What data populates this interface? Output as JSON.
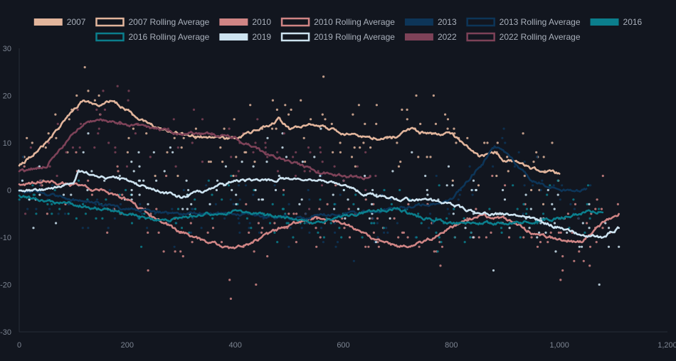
{
  "chart_data": {
    "type": "scatter",
    "title": "",
    "xlabel": "",
    "ylabel": "",
    "xlim": [
      0,
      1200
    ],
    "ylim": [
      -30,
      30
    ],
    "x_ticks": [
      0,
      200,
      400,
      600,
      800,
      1000,
      1200
    ],
    "x_tick_labels": [
      "0",
      "200",
      "400",
      "600",
      "800",
      "1,000",
      "1,200"
    ],
    "y_ticks": [
      -30,
      -20,
      -10,
      0,
      10,
      20,
      30
    ],
    "y_tick_labels": [
      "-30",
      "-20",
      "-10",
      "0",
      "10",
      "20",
      "30"
    ],
    "grid": false,
    "legend_position": "top",
    "legend": [
      {
        "label": "2007",
        "style": "filled",
        "color": "#e2b59c"
      },
      {
        "label": "2007 Rolling Average",
        "style": "outline",
        "color": "#e2b59c"
      },
      {
        "label": "2010",
        "style": "filled",
        "color": "#d08585"
      },
      {
        "label": "2010 Rolling Average",
        "style": "outline",
        "color": "#d08585"
      },
      {
        "label": "2013",
        "style": "filled",
        "color": "#0d3558"
      },
      {
        "label": "2013 Rolling Average",
        "style": "outline",
        "color": "#0d3558"
      },
      {
        "label": "2016",
        "style": "filled",
        "color": "#0b7e8c"
      },
      {
        "label": "2016 Rolling Average",
        "style": "outline",
        "color": "#0b7e8c"
      },
      {
        "label": "2019",
        "style": "filled",
        "color": "#cde3f0"
      },
      {
        "label": "2019 Rolling Average",
        "style": "outline",
        "color": "#cde3f0"
      },
      {
        "label": "2022",
        "style": "filled",
        "color": "#7d4258"
      },
      {
        "label": "2022 Rolling Average",
        "style": "outline",
        "color": "#7d4258"
      }
    ],
    "series": [
      {
        "name": "2007",
        "color": "#e2b59c",
        "x_max": 1000,
        "noise": 4.5,
        "rolling": [
          [
            0,
            5
          ],
          [
            50,
            10
          ],
          [
            100,
            17
          ],
          [
            120,
            19
          ],
          [
            150,
            18
          ],
          [
            170,
            19
          ],
          [
            200,
            17
          ],
          [
            250,
            13
          ],
          [
            300,
            12
          ],
          [
            350,
            11
          ],
          [
            400,
            11
          ],
          [
            450,
            13
          ],
          [
            480,
            15
          ],
          [
            500,
            13
          ],
          [
            550,
            14
          ],
          [
            600,
            12
          ],
          [
            650,
            11
          ],
          [
            700,
            11
          ],
          [
            720,
            13
          ],
          [
            750,
            12
          ],
          [
            800,
            12
          ],
          [
            830,
            9
          ],
          [
            850,
            7
          ],
          [
            880,
            8
          ],
          [
            900,
            6
          ],
          [
            920,
            6
          ],
          [
            950,
            4.5
          ],
          [
            1000,
            3.5
          ]
        ]
      },
      {
        "name": "2010",
        "color": "#d08585",
        "x_max": 1120,
        "noise": 4.5,
        "rolling": [
          [
            0,
            1
          ],
          [
            50,
            2
          ],
          [
            100,
            1
          ],
          [
            150,
            0
          ],
          [
            200,
            -2
          ],
          [
            250,
            -6
          ],
          [
            300,
            -9
          ],
          [
            350,
            -11
          ],
          [
            400,
            -12.5
          ],
          [
            450,
            -10
          ],
          [
            500,
            -7
          ],
          [
            550,
            -6
          ],
          [
            600,
            -7
          ],
          [
            650,
            -10
          ],
          [
            700,
            -12
          ],
          [
            750,
            -11
          ],
          [
            800,
            -8
          ],
          [
            850,
            -5.5
          ],
          [
            900,
            -6
          ],
          [
            950,
            -9
          ],
          [
            1000,
            -10.5
          ],
          [
            1040,
            -11
          ],
          [
            1080,
            -7
          ],
          [
            1110,
            -5
          ]
        ]
      },
      {
        "name": "2013",
        "color": "#0d3558",
        "x_max": 1060,
        "noise": 3.5,
        "rolling": [
          [
            0,
            0
          ],
          [
            50,
            -1
          ],
          [
            100,
            -2
          ],
          [
            200,
            -4
          ],
          [
            300,
            -5
          ],
          [
            400,
            -5
          ],
          [
            500,
            -6
          ],
          [
            600,
            -5
          ],
          [
            700,
            -4
          ],
          [
            750,
            -3
          ],
          [
            800,
            -2
          ],
          [
            830,
            2
          ],
          [
            860,
            6
          ],
          [
            880,
            9
          ],
          [
            900,
            8
          ],
          [
            950,
            2
          ],
          [
            1000,
            0
          ],
          [
            1050,
            0
          ]
        ]
      },
      {
        "name": "2016",
        "color": "#0b7e8c",
        "x_max": 1080,
        "noise": 3,
        "rolling": [
          [
            0,
            -1
          ],
          [
            50,
            -2.5
          ],
          [
            100,
            -3
          ],
          [
            150,
            -4
          ],
          [
            200,
            -5
          ],
          [
            250,
            -6.5
          ],
          [
            300,
            -6
          ],
          [
            350,
            -5
          ],
          [
            400,
            -4.5
          ],
          [
            450,
            -5
          ],
          [
            500,
            -6
          ],
          [
            550,
            -7
          ],
          [
            600,
            -5.5
          ],
          [
            650,
            -4.5
          ],
          [
            700,
            -4
          ],
          [
            750,
            -6
          ],
          [
            800,
            -7
          ],
          [
            850,
            -7
          ],
          [
            900,
            -7
          ],
          [
            950,
            -6.5
          ],
          [
            1000,
            -6
          ],
          [
            1050,
            -4.5
          ],
          [
            1080,
            -4.5
          ]
        ]
      },
      {
        "name": "2019",
        "color": "#cde3f0",
        "x_max": 1115,
        "noise": 4.5,
        "rolling": [
          [
            0,
            0
          ],
          [
            50,
            0
          ],
          [
            100,
            1.5
          ],
          [
            110,
            4
          ],
          [
            150,
            3
          ],
          [
            200,
            2
          ],
          [
            250,
            0
          ],
          [
            300,
            -1.5
          ],
          [
            350,
            0
          ],
          [
            400,
            2
          ],
          [
            450,
            2
          ],
          [
            500,
            2.5
          ],
          [
            550,
            2
          ],
          [
            600,
            1
          ],
          [
            650,
            -1
          ],
          [
            700,
            -2
          ],
          [
            750,
            -2
          ],
          [
            800,
            -3
          ],
          [
            850,
            -5
          ],
          [
            900,
            -5
          ],
          [
            950,
            -6
          ],
          [
            1000,
            -8
          ],
          [
            1050,
            -10
          ],
          [
            1080,
            -10
          ],
          [
            1110,
            -8
          ]
        ]
      },
      {
        "name": "2022",
        "color": "#7d4258",
        "x_max": 660,
        "noise": 4,
        "rolling": [
          [
            0,
            4
          ],
          [
            50,
            5
          ],
          [
            100,
            12
          ],
          [
            120,
            14
          ],
          [
            150,
            15
          ],
          [
            200,
            14
          ],
          [
            250,
            13
          ],
          [
            300,
            12
          ],
          [
            350,
            12
          ],
          [
            400,
            11
          ],
          [
            450,
            8
          ],
          [
            500,
            6
          ],
          [
            550,
            4
          ],
          [
            600,
            3
          ],
          [
            650,
            2.5
          ]
        ]
      }
    ]
  }
}
